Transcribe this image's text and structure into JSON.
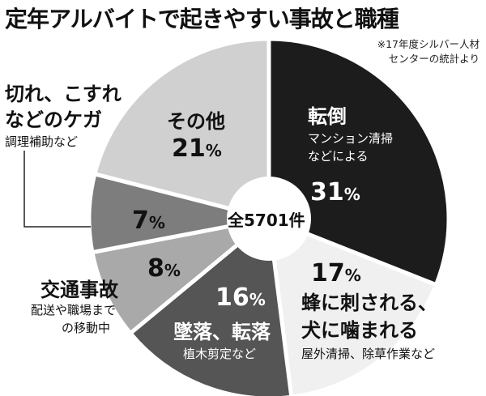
{
  "title": "定年アルバイトで起きやすい事故と職種",
  "source_note_line1": "※17年度シルバー人材",
  "source_note_line2": "センターの統計より",
  "center_label": "全5701件",
  "chart_data": {
    "type": "pie",
    "title": "定年アルバイトで起きやすい事故と職種",
    "total_label": "全5701件",
    "slices": [
      {
        "name": "転倒",
        "value": 31,
        "detail": [
          "マンション清掃",
          "などによる"
        ],
        "color": "#1c1c1c"
      },
      {
        "name": "蜂に刺される、犬に噛まれる",
        "name_lines": [
          "蜂に刺される、",
          "犬に噛まれる"
        ],
        "value": 17,
        "detail": [
          "屋外清掃、除草作業など"
        ],
        "color": "#f0f0f0"
      },
      {
        "name": "墜落、転落",
        "value": 16,
        "detail": [
          "植木剪定など"
        ],
        "color": "#555555"
      },
      {
        "name": "交通事故",
        "value": 8,
        "detail": [
          "配送や職場まで",
          "の移動中"
        ],
        "color": "#a9a9a9"
      },
      {
        "name": "切れ、こすれなどのケガ",
        "name_lines": [
          "切れ、こすれ",
          "などのケガ"
        ],
        "value": 7,
        "detail": [
          "調理補助など"
        ],
        "color": "#7d7d7d"
      },
      {
        "name": "その他",
        "value": 21,
        "detail": [],
        "color": "#d0d0d0"
      }
    ]
  }
}
